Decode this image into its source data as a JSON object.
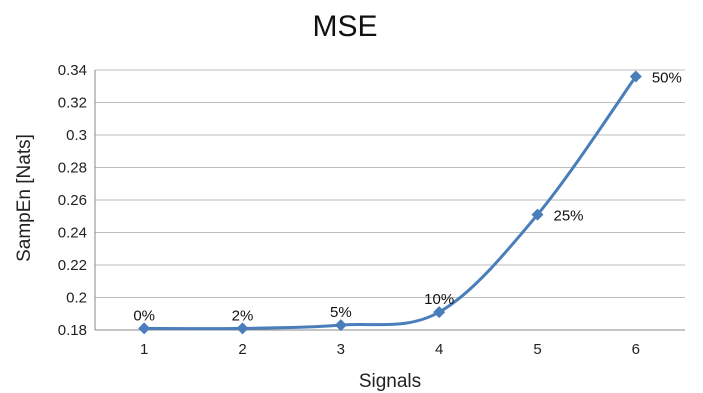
{
  "chart_data": {
    "type": "line",
    "title": "MSE",
    "xlabel": "Signals",
    "ylabel": "SampEn [Nats]",
    "x": [
      1,
      2,
      3,
      4,
      5,
      6
    ],
    "series": [
      {
        "values": [
          0.181,
          0.181,
          0.183,
          0.191,
          0.251,
          0.336
        ],
        "labels": [
          "0%",
          "2%",
          "5%",
          "10%",
          "25%",
          "50%"
        ],
        "color": "#4a7ebb"
      }
    ],
    "ylim": [
      0.18,
      0.34
    ],
    "yticks": [
      "0.18",
      "0.2",
      "0.22",
      "0.24",
      "0.26",
      "0.28",
      "0.3",
      "0.32",
      "0.34"
    ],
    "xticks": [
      "1",
      "2",
      "3",
      "4",
      "5",
      "6"
    ],
    "grid": true,
    "legend": "none",
    "marker": "diamond"
  }
}
